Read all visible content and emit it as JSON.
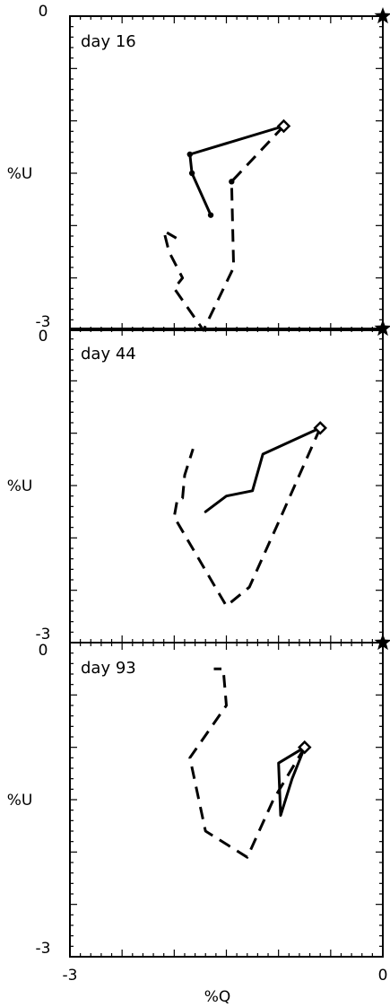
{
  "chart_data": {
    "type": "line",
    "x_axis": {
      "label": "%Q",
      "range": [
        -3,
        0
      ],
      "tick_labels": [
        "-3",
        "0"
      ]
    },
    "y_axis": {
      "label": "%U",
      "range": [
        -3,
        0
      ],
      "top_tick_label": "0",
      "bottom_tick_label": "-3"
    },
    "colors": {
      "lines": "#000000",
      "frame": "#000000",
      "background": "#ffffff"
    },
    "reference_marker": {
      "shape": "star",
      "x": 0,
      "y": 0
    },
    "start_marker": "open-diamond",
    "point_marker": "filled-dot",
    "panels": [
      {
        "title": "day 16",
        "solid": [
          [
            -0.95,
            -1.05
          ],
          [
            -1.85,
            -1.32
          ],
          [
            -1.83,
            -1.5
          ],
          [
            -1.65,
            -1.9
          ]
        ],
        "solid_points": [
          [
            -1.85,
            -1.32
          ],
          [
            -1.83,
            -1.5
          ],
          [
            -1.65,
            -1.9
          ]
        ],
        "dashed": [
          [
            -0.95,
            -1.05
          ],
          [
            -1.45,
            -1.58
          ],
          [
            -1.43,
            -2.4
          ],
          [
            -1.72,
            -3.0
          ],
          [
            -2.0,
            -2.6
          ],
          [
            -1.92,
            -2.5
          ],
          [
            -2.05,
            -2.25
          ],
          [
            -2.1,
            -2.05
          ],
          [
            -1.98,
            -2.12
          ]
        ],
        "dashed_points": [
          [
            -1.45,
            -1.58
          ]
        ]
      },
      {
        "title": "day 44",
        "solid": [
          [
            -0.6,
            -0.95
          ],
          [
            -1.15,
            -1.2
          ],
          [
            -1.25,
            -1.55
          ],
          [
            -1.5,
            -1.6
          ],
          [
            -1.7,
            -1.75
          ]
        ],
        "solid_points": [],
        "dashed": [
          [
            -0.6,
            -0.95
          ],
          [
            -1.0,
            -1.85
          ],
          [
            -1.28,
            -2.47
          ],
          [
            -1.5,
            -2.65
          ],
          [
            -2.0,
            -1.8
          ],
          [
            -1.97,
            -1.63
          ],
          [
            -1.92,
            -1.62
          ],
          [
            -1.9,
            -1.4
          ],
          [
            -1.82,
            -1.15
          ]
        ],
        "dashed_points": []
      },
      {
        "title": "day 93",
        "solid": [
          [
            -0.75,
            -1.0
          ],
          [
            -1.0,
            -1.15
          ],
          [
            -0.98,
            -1.65
          ],
          [
            -0.87,
            -1.3
          ],
          [
            -0.75,
            -1.0
          ]
        ],
        "solid_points": [],
        "dashed": [
          [
            -0.75,
            -1.0
          ],
          [
            -1.05,
            -1.5
          ],
          [
            -1.3,
            -2.05
          ],
          [
            -1.7,
            -1.8
          ],
          [
            -1.85,
            -1.1
          ],
          [
            -1.5,
            -0.6
          ],
          [
            -1.53,
            -0.25
          ],
          [
            -1.62,
            -0.25
          ]
        ],
        "dashed_points": []
      }
    ]
  }
}
